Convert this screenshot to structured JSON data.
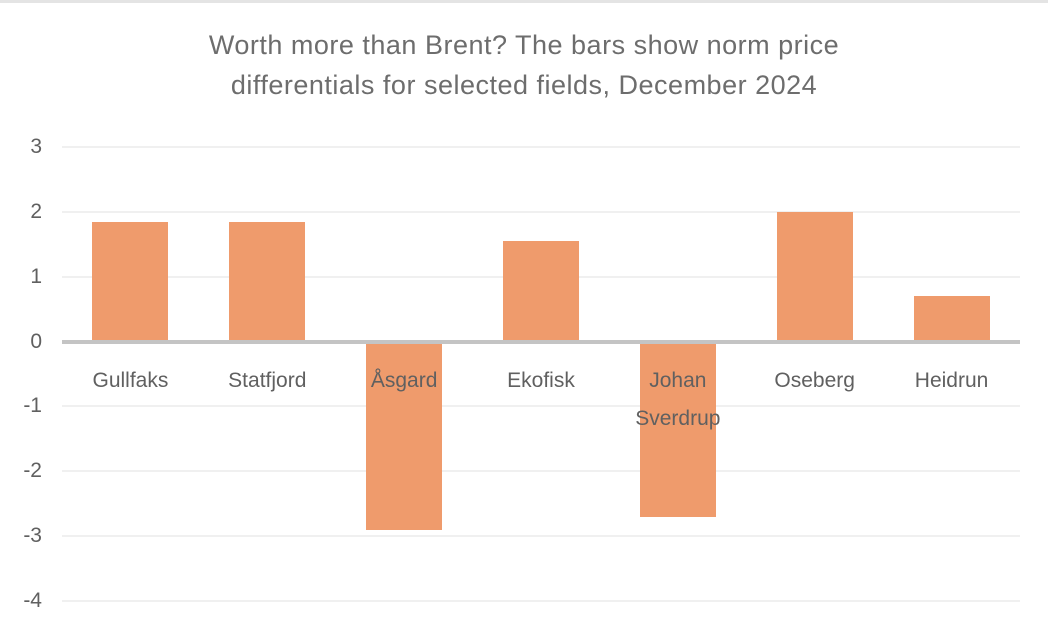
{
  "page": {
    "background_color": "#ffffff",
    "top_border_color": "#e4e4e4"
  },
  "chart_data": {
    "type": "bar",
    "title": "Worth more than Brent? The bars show norm price differentials for selected fields, December 2024",
    "title_lines": [
      "Worth more than Brent? The bars show norm price",
      "differentials for selected fields, December 2024"
    ],
    "categories": [
      "Gullfaks",
      "Statfjord",
      "Åsgard",
      "Ekofisk",
      "Johan Sverdrup",
      "Oseberg",
      "Heidrun"
    ],
    "values": [
      1.85,
      1.85,
      -2.9,
      1.55,
      -2.7,
      2.0,
      0.7
    ],
    "yticks": [
      3,
      2,
      1,
      0,
      -1,
      -2,
      -3,
      -4
    ],
    "ylim": [
      -4,
      3
    ],
    "xlabel": "",
    "ylabel": "",
    "legend": "none",
    "grid": "horizontal",
    "colors": {
      "bar": "#ef9b6c",
      "axis_line": "#c4c4c4",
      "gridline": "#f0f0f0",
      "tick_text": "#606060",
      "title_text": "#6d6d6d"
    }
  }
}
